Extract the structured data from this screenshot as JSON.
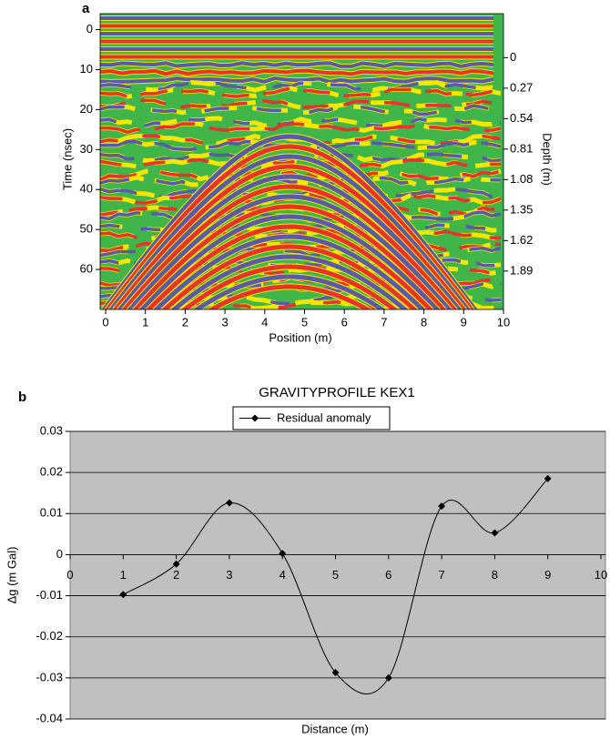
{
  "chart_data": [
    {
      "type": "image",
      "panel_label": "a",
      "xlabel": "Position (m)",
      "ylabel": "Time (nsec)",
      "y2label": "Depth (m)",
      "xlim": [
        0,
        10
      ],
      "xticks": [
        0,
        1,
        2,
        3,
        4,
        5,
        6,
        7,
        8,
        9,
        10
      ],
      "ylim": [
        -4,
        70
      ],
      "y_inverted": true,
      "yticks": [
        0,
        10,
        20,
        30,
        40,
        50,
        60
      ],
      "y2lim": [
        -0.39,
        2.23
      ],
      "y2ticks": [
        0,
        0.27,
        0.54,
        0.81,
        1.08,
        1.35,
        1.62,
        1.89
      ]
    },
    {
      "type": "line",
      "panel_label": "b",
      "title": "GRAVITYPROFILE KEX1",
      "xlabel": "Distance (m)",
      "ylabel": "Δg (m Gal)",
      "x": [
        1,
        2,
        3,
        4,
        5,
        6,
        7,
        8,
        9
      ],
      "series": [
        {
          "name": "Residual anomaly",
          "color": "#000000",
          "marker": "diamond",
          "smooth": true,
          "values": [
            -0.0097,
            -0.0023,
            0.0126,
            0.0003,
            -0.0287,
            -0.03,
            0.0118,
            0.0053,
            0.0185
          ]
        }
      ],
      "xlim": [
        0,
        10
      ],
      "xticks": [
        0,
        1,
        2,
        3,
        4,
        5,
        6,
        7,
        8,
        9,
        10
      ],
      "ylim": [
        -0.04,
        0.03
      ],
      "yticks": [
        -0.04,
        -0.03,
        -0.02,
        -0.01,
        0,
        0.01,
        0.02,
        0.03
      ],
      "grid": true,
      "background": "#c0c0c0",
      "legend": "top"
    }
  ]
}
